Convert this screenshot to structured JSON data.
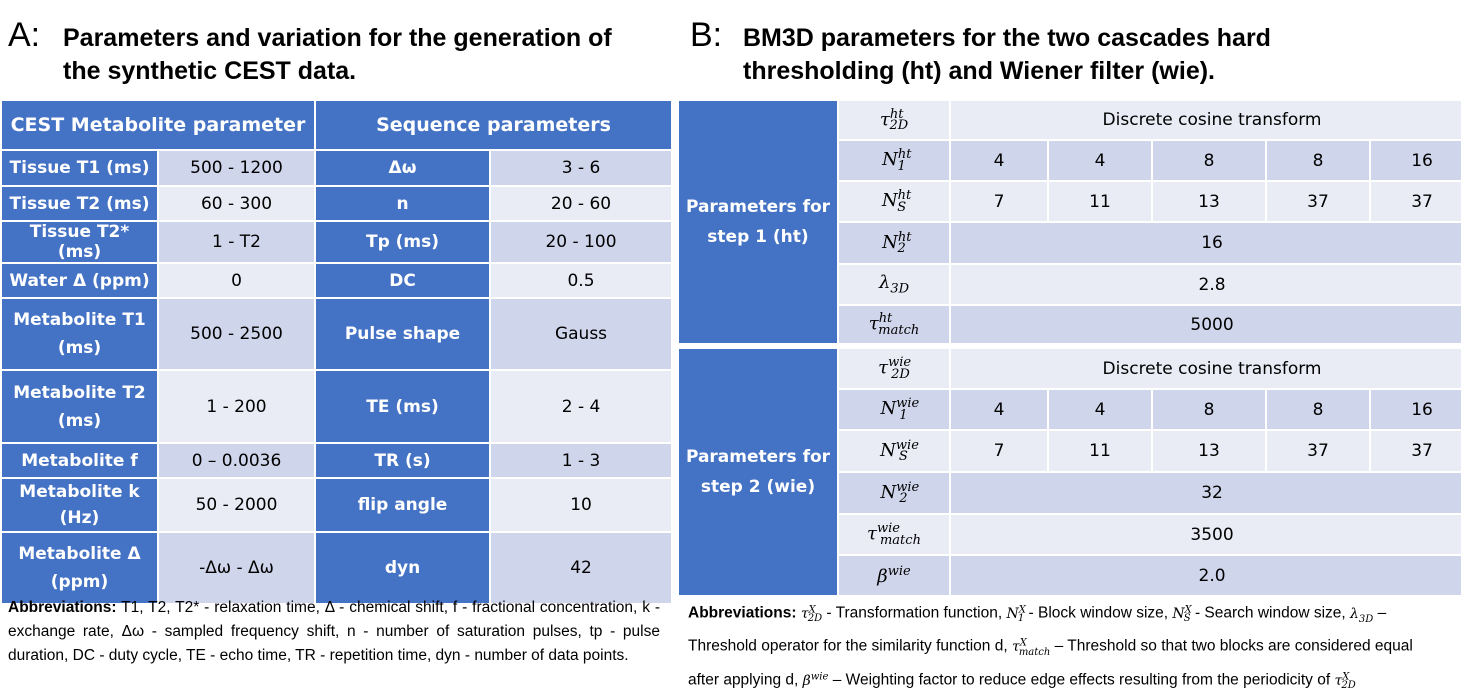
{
  "panel_a": {
    "letter": "A:",
    "title_line1": "Parameters and variation for the generation of",
    "title_line2": "the synthetic CEST data.",
    "headers": [
      "CEST Metabolite parameter",
      "Sequence parameters"
    ],
    "rows": [
      {
        "p1": "Tissue T1 (ms)",
        "v1": "500 - 1200",
        "p2": "Δω",
        "v2": "3 - 6"
      },
      {
        "p1": "Tissue T2 (ms)",
        "v1": "60 - 300",
        "p2": "n",
        "v2": "20 - 60"
      },
      {
        "p1": "Tissue T2* (ms)",
        "v1": "1 - T2",
        "p2": "Tp (ms)",
        "v2": "20 - 100"
      },
      {
        "p1": "Water Δ (ppm)",
        "v1": "0",
        "p2": "DC",
        "v2": "0.5"
      },
      {
        "p1": "Metabolite T1 (ms)",
        "v1": "500 - 2500",
        "p2": "Pulse shape",
        "v2": "Gauss"
      },
      {
        "p1": "Metabolite T2 (ms)",
        "v1": "1 - 200",
        "p2": "TE (ms)",
        "v2": "2 - 4"
      },
      {
        "p1": "Metabolite f",
        "v1": "0 – 0.0036",
        "p2": "TR (s)",
        "v2": "1 - 3"
      },
      {
        "p1": "Metabolite k (Hz)",
        "v1": "50 - 2000",
        "p2": "flip angle",
        "v2": "10"
      },
      {
        "p1": "Metabolite Δ (ppm)",
        "v1": "-Δω - Δω",
        "p2": "dyn",
        "v2": "42"
      }
    ],
    "abbrev_label": "Abbreviations:",
    "abbrev_text": "T1, T2, T2* - relaxation time, Δ - chemical shift, f - fractional concentration, k - exchange rate, Δω - sampled frequency shift, n - number of saturation pulses, tp - pulse duration, DC - duty cycle, TE - echo time, TR - repetition time, dyn - number of data points."
  },
  "panel_b": {
    "letter": "B:",
    "title_line1": "BM3D parameters for the two cascades hard",
    "title_line2": "thresholding (ht) and Wiener filter (wie).",
    "step1": {
      "label": "Parameters for step 1 (ht)",
      "sup": "ht",
      "tau2d": "Discrete cosine transform",
      "n1": [
        "4",
        "4",
        "8",
        "8",
        "16"
      ],
      "ns": [
        "7",
        "11",
        "13",
        "37",
        "37"
      ],
      "n2": "16",
      "lambda3d": "2.8",
      "tau_match": "5000"
    },
    "step2": {
      "label": "Parameters for step 2 (wie)",
      "sup": "wie",
      "tau2d": "Discrete cosine transform",
      "n1": [
        "4",
        "4",
        "8",
        "8",
        "16"
      ],
      "ns": [
        "7",
        "11",
        "13",
        "37",
        "37"
      ],
      "n2": "32",
      "tau_match": "3500",
      "beta": "2.0"
    },
    "abbrev_label": "Abbreviations:",
    "abbrev_parts": {
      "t1": "- Transformation function,",
      "t2": "- Block window size,",
      "t3": "- Search window size,",
      "t4": "– Threshold operator for the similarity function d,",
      "t5": "– Threshold so that two blocks are considered equal after applying d,",
      "t6": "– Weighting factor to reduce edge effects resulting from the periodicity of"
    }
  }
}
